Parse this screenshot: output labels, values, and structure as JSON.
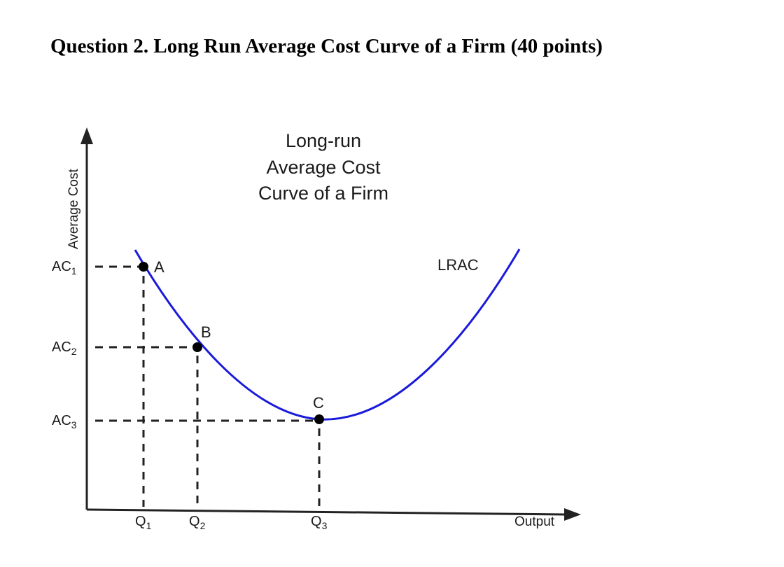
{
  "question": {
    "title": "Question 2. Long Run Average Cost Curve of a Firm (40 points)"
  },
  "chart_data": {
    "type": "line",
    "title_lines": [
      "Long-run",
      "Average Cost",
      "Curve of a Firm"
    ],
    "ylabel": "Average Cost",
    "xlabel": "Output",
    "series": [
      {
        "name": "LRAC",
        "color": "#1a1adb"
      }
    ],
    "points": [
      {
        "name": "A",
        "x_label": "Q1",
        "y_label": "AC1"
      },
      {
        "name": "B",
        "x_label": "Q2",
        "y_label": "AC2"
      },
      {
        "name": "C",
        "x_label": "Q3",
        "y_label": "AC3"
      }
    ],
    "x_ticks": [
      {
        "base": "Q",
        "sub": "1"
      },
      {
        "base": "Q",
        "sub": "2"
      },
      {
        "base": "Q",
        "sub": "3"
      }
    ],
    "y_ticks": [
      {
        "base": "AC",
        "sub": "1"
      },
      {
        "base": "AC",
        "sub": "2"
      },
      {
        "base": "AC",
        "sub": "3"
      }
    ],
    "grid": false,
    "guide_lines": "dashed"
  }
}
